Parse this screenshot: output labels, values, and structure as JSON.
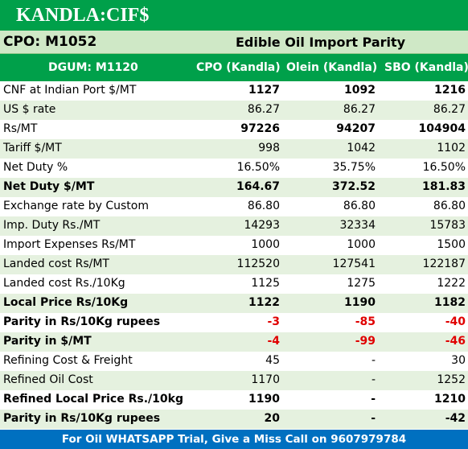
{
  "banner": "KANDLA:CIF$",
  "subheader": {
    "code": "CPO: M1052",
    "title": "Edible Oil Import Parity"
  },
  "columns": [
    "DGUM: M1120",
    "CPO (Kandla)",
    "Olein (Kandla)",
    "SBO (Kandla)"
  ],
  "rows": [
    {
      "label": "CNF at Indian Port $/MT",
      "cpo": "1127",
      "olein": "1092",
      "sbo": "1216",
      "bold_values": true
    },
    {
      "label": "US $ rate",
      "cpo": "86.27",
      "olein": "86.27",
      "sbo": "86.27"
    },
    {
      "label": "Rs/MT",
      "cpo": "97226",
      "olein": "94207",
      "sbo": "104904",
      "bold_values": true
    },
    {
      "label": "Tariff $/MT",
      "cpo": "998",
      "olein": "1042",
      "sbo": "1102"
    },
    {
      "label": "Net Duty %",
      "cpo": "16.50%",
      "olein": "35.75%",
      "sbo": "16.50%"
    },
    {
      "label": "Net Duty $/MT",
      "cpo": "164.67",
      "olein": "372.52",
      "sbo": "181.83",
      "bold": true
    },
    {
      "label": "Exchange rate by Custom",
      "cpo": "86.80",
      "olein": "86.80",
      "sbo": "86.80"
    },
    {
      "label": "Imp. Duty Rs./MT",
      "cpo": "14293",
      "olein": "32334",
      "sbo": "15783"
    },
    {
      "label": "Import Expenses Rs/MT",
      "cpo": "1000",
      "olein": "1000",
      "sbo": "1500"
    },
    {
      "label": "Landed cost Rs/MT",
      "cpo": "112520",
      "olein": "127541",
      "sbo": "122187"
    },
    {
      "label": "Landed cost Rs./10Kg",
      "cpo": "1125",
      "olein": "1275",
      "sbo": "1222"
    },
    {
      "label": "Local Price Rs/10Kg",
      "cpo": "1122",
      "olein": "1190",
      "sbo": "1182",
      "bold": true
    },
    {
      "label": "Parity in Rs/10Kg rupees",
      "cpo": "-3",
      "olein": "-85",
      "sbo": "-40",
      "bold": true,
      "negative": true
    },
    {
      "label": "Parity in $/MT",
      "cpo": "-4",
      "olein": "-99",
      "sbo": "-46",
      "bold": true,
      "negative": true
    },
    {
      "label": "Refining Cost & Freight",
      "cpo": "45",
      "olein": "-",
      "sbo": "30"
    },
    {
      "label": "Refined Oil Cost",
      "cpo": "1170",
      "olein": "-",
      "sbo": "1252"
    },
    {
      "label": "Refined Local Price Rs./10kg",
      "cpo": "1190",
      "olein": "-",
      "sbo": "1210",
      "bold": true
    },
    {
      "label": "Parity in Rs/10Kg rupees",
      "cpo": "20",
      "olein": "-",
      "sbo": "-42",
      "bold": true
    }
  ],
  "footer": "For Oil WHATSAPP Trial, Give a Miss Call on 9607979784",
  "colors": {
    "green": "#00a04a",
    "light_green": "#cfe8c6",
    "row_alt": "#e5f1df",
    "footer_blue": "#0070c0",
    "negative_red": "#e00000"
  }
}
